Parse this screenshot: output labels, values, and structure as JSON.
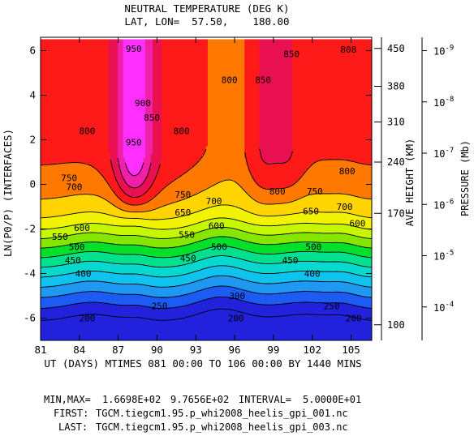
{
  "chart_data": {
    "type": "contour",
    "title": "NEUTRAL TEMPERATURE (DEG K)",
    "subtitle": "LAT, LON=  57.50,    180.00",
    "xlabel": "UT (DAYS) MTIMES 081 00:00 TO 106 00:00 BY 1440 MINS",
    "ylabel": "LN(P0/P) (INTERFACES)",
    "right_label_height": "AVE HEIGHT (KM)",
    "right_label_pressure": "PRESSURE (Mb)",
    "xlim": [
      81,
      106.6
    ],
    "ylim": [
      -7,
      6.6
    ],
    "x_ticks": [
      "81",
      "84",
      "87",
      "90",
      "93",
      "96",
      "99",
      "102",
      "105"
    ],
    "y_ticks": [
      "-6",
      "-4",
      "-2",
      "0",
      "2",
      "4",
      "6"
    ],
    "height_ticks": [
      {
        "label": "450",
        "lev": 6.1
      },
      {
        "label": "380",
        "lev": 4.4
      },
      {
        "label": "310",
        "lev": 2.8
      },
      {
        "label": "240",
        "lev": 1.0
      },
      {
        "label": "170",
        "lev": -1.3
      },
      {
        "label": "100",
        "lev": -6.3
      }
    ],
    "pressure_ticks": [
      {
        "base": "10",
        "exp": "-9",
        "lev": 6.0
      },
      {
        "base": "10",
        "exp": "-8",
        "lev": 3.7
      },
      {
        "base": "10",
        "exp": "-7",
        "lev": 1.4
      },
      {
        "base": "10",
        "exp": "-6",
        "lev": -0.9
      },
      {
        "base": "10",
        "exp": "-5",
        "lev": -3.2
      },
      {
        "base": "10",
        "exp": "-4",
        "lev": -5.5
      }
    ],
    "contour_levels": [
      200,
      250,
      300,
      350,
      400,
      450,
      500,
      550,
      600,
      650,
      700,
      750,
      800,
      850,
      900,
      950
    ],
    "contour_labels": [
      {
        "text": "200",
        "x": 84.6,
        "y": -6.0
      },
      {
        "text": "200",
        "x": 96.1,
        "y": -6.0
      },
      {
        "text": "200",
        "x": 105.2,
        "y": -6.0
      },
      {
        "text": "250",
        "x": 90.2,
        "y": -5.45
      },
      {
        "text": "250",
        "x": 103.5,
        "y": -5.45
      },
      {
        "text": "300",
        "x": 96.2,
        "y": -5.0
      },
      {
        "text": "400",
        "x": 84.3,
        "y": -4.0
      },
      {
        "text": "400",
        "x": 102.0,
        "y": -4.0
      },
      {
        "text": "450",
        "x": 83.5,
        "y": -3.4
      },
      {
        "text": "450",
        "x": 92.4,
        "y": -3.3
      },
      {
        "text": "450",
        "x": 100.3,
        "y": -3.4
      },
      {
        "text": "500",
        "x": 83.8,
        "y": -2.8
      },
      {
        "text": "500",
        "x": 94.8,
        "y": -2.8
      },
      {
        "text": "500",
        "x": 102.1,
        "y": -2.8
      },
      {
        "text": "550",
        "x": 82.5,
        "y": -2.35
      },
      {
        "text": "550",
        "x": 92.3,
        "y": -2.25
      },
      {
        "text": "600",
        "x": 84.2,
        "y": -1.95
      },
      {
        "text": "600",
        "x": 94.6,
        "y": -1.85
      },
      {
        "text": "600",
        "x": 105.5,
        "y": -1.75
      },
      {
        "text": "650",
        "x": 92.0,
        "y": -1.25
      },
      {
        "text": "650",
        "x": 101.9,
        "y": -1.2
      },
      {
        "text": "700",
        "x": 83.6,
        "y": -0.1
      },
      {
        "text": "700",
        "x": 94.4,
        "y": -0.75
      },
      {
        "text": "700",
        "x": 104.5,
        "y": -1.0
      },
      {
        "text": "750",
        "x": 83.2,
        "y": 0.3
      },
      {
        "text": "750",
        "x": 92.0,
        "y": -0.45
      },
      {
        "text": "750",
        "x": 102.2,
        "y": -0.3
      },
      {
        "text": "800",
        "x": 84.6,
        "y": 2.4
      },
      {
        "text": "800",
        "x": 91.9,
        "y": 2.4
      },
      {
        "text": "800",
        "x": 95.6,
        "y": 4.7
      },
      {
        "text": "800",
        "x": 99.3,
        "y": -0.3
      },
      {
        "text": "800",
        "x": 104.7,
        "y": 0.6
      },
      {
        "text": "808",
        "x": 104.8,
        "y": 6.05
      },
      {
        "text": "850",
        "x": 89.6,
        "y": 3.0
      },
      {
        "text": "850",
        "x": 98.2,
        "y": 4.7
      },
      {
        "text": "850",
        "x": 100.4,
        "y": 5.85
      },
      {
        "text": "900",
        "x": 88.9,
        "y": 3.65
      },
      {
        "text": "950",
        "x": 88.2,
        "y": 1.9
      },
      {
        "text": "950",
        "x": 88.2,
        "y": 6.1
      }
    ],
    "colors": {
      "c200": "#2222dd",
      "c250": "#1c5cf4",
      "c300": "#1f98f2",
      "c350": "#10c3ee",
      "c400": "#08d9cf",
      "c450": "#00e08d",
      "c500": "#05e02a",
      "c550": "#86e600",
      "c600": "#c6f600",
      "c650": "#f2f300",
      "c700": "#ffd400",
      "c750": "#ff7800",
      "c800": "#ff1a1a",
      "c850": "#e81050",
      "c900": "#f020a8",
      "c950": "#ff30ff"
    }
  },
  "footer": {
    "minmax_label": "MIN,MAX=",
    "min": "1.6698E+02",
    "max": "9.7656E+02",
    "interval_label": "INTERVAL=",
    "interval": "5.0000E+01",
    "first_label": "FIRST:",
    "first_file": "TGCM.tiegcm1.95.p_whi2008_heelis_gpi_001.nc",
    "last_label": "LAST:",
    "last_file": "TGCM.tiegcm1.95.p_whi2008_heelis_gpi_003.nc"
  }
}
